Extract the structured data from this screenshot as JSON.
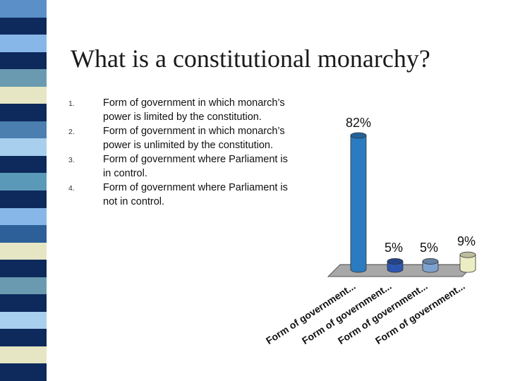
{
  "slide": {
    "title": "What is a constitutional monarchy?"
  },
  "options": [
    {
      "number": "1.",
      "text": "Form of government in which monarch’s power is limited by the constitution."
    },
    {
      "number": "2.",
      "text": "Form of government in which monarch’s power is unlimited by the constitution."
    },
    {
      "number": "3.",
      "text": "Form of government where Parliament is in control."
    },
    {
      "number": "4.",
      "text": "Form of government where Parliament is not in control."
    }
  ],
  "colors": {
    "sidebar_stripes": [
      "#5b8fc7",
      "#0e2a5c",
      "#87b7e8",
      "#0e2a5c",
      "#6a9ab0",
      "#e6e6c4",
      "#0e2a5c",
      "#4a7fb0",
      "#a9cfee",
      "#0e2a5c",
      "#5a9ab8",
      "#0e2a5c",
      "#87b7e8",
      "#2d5f99",
      "#e6e6c4",
      "#0e2a5c",
      "#6a9ab0",
      "#0e2a5c",
      "#a9cfee",
      "#0e2a5c",
      "#e6e6c4",
      "#0e2a5c"
    ],
    "bar_blue": "#2a7bc0",
    "bar_dark_blue": "#2d56b0",
    "bar_light_blue": "#7ea2cf",
    "bar_cream": "#ecedc4",
    "floor": "#8a8a8a"
  },
  "chart_data": {
    "type": "bar",
    "categories": [
      "Form of government in which monarch’s power is limited by the constitution.",
      "Form of government in which monarch’s power is unlimited by the constitution.",
      "Form of government where Parliament is in control.",
      "Form of government where Parliament is not in control."
    ],
    "category_labels": [
      "Form of government...",
      "Form of government...",
      "Form of government...",
      "Form of government..."
    ],
    "values": [
      82,
      5,
      5,
      9
    ],
    "value_labels": [
      "82%",
      "5%",
      "5%",
      "9%"
    ],
    "ylim": [
      0,
      100
    ],
    "grid": false,
    "legend": "none"
  }
}
